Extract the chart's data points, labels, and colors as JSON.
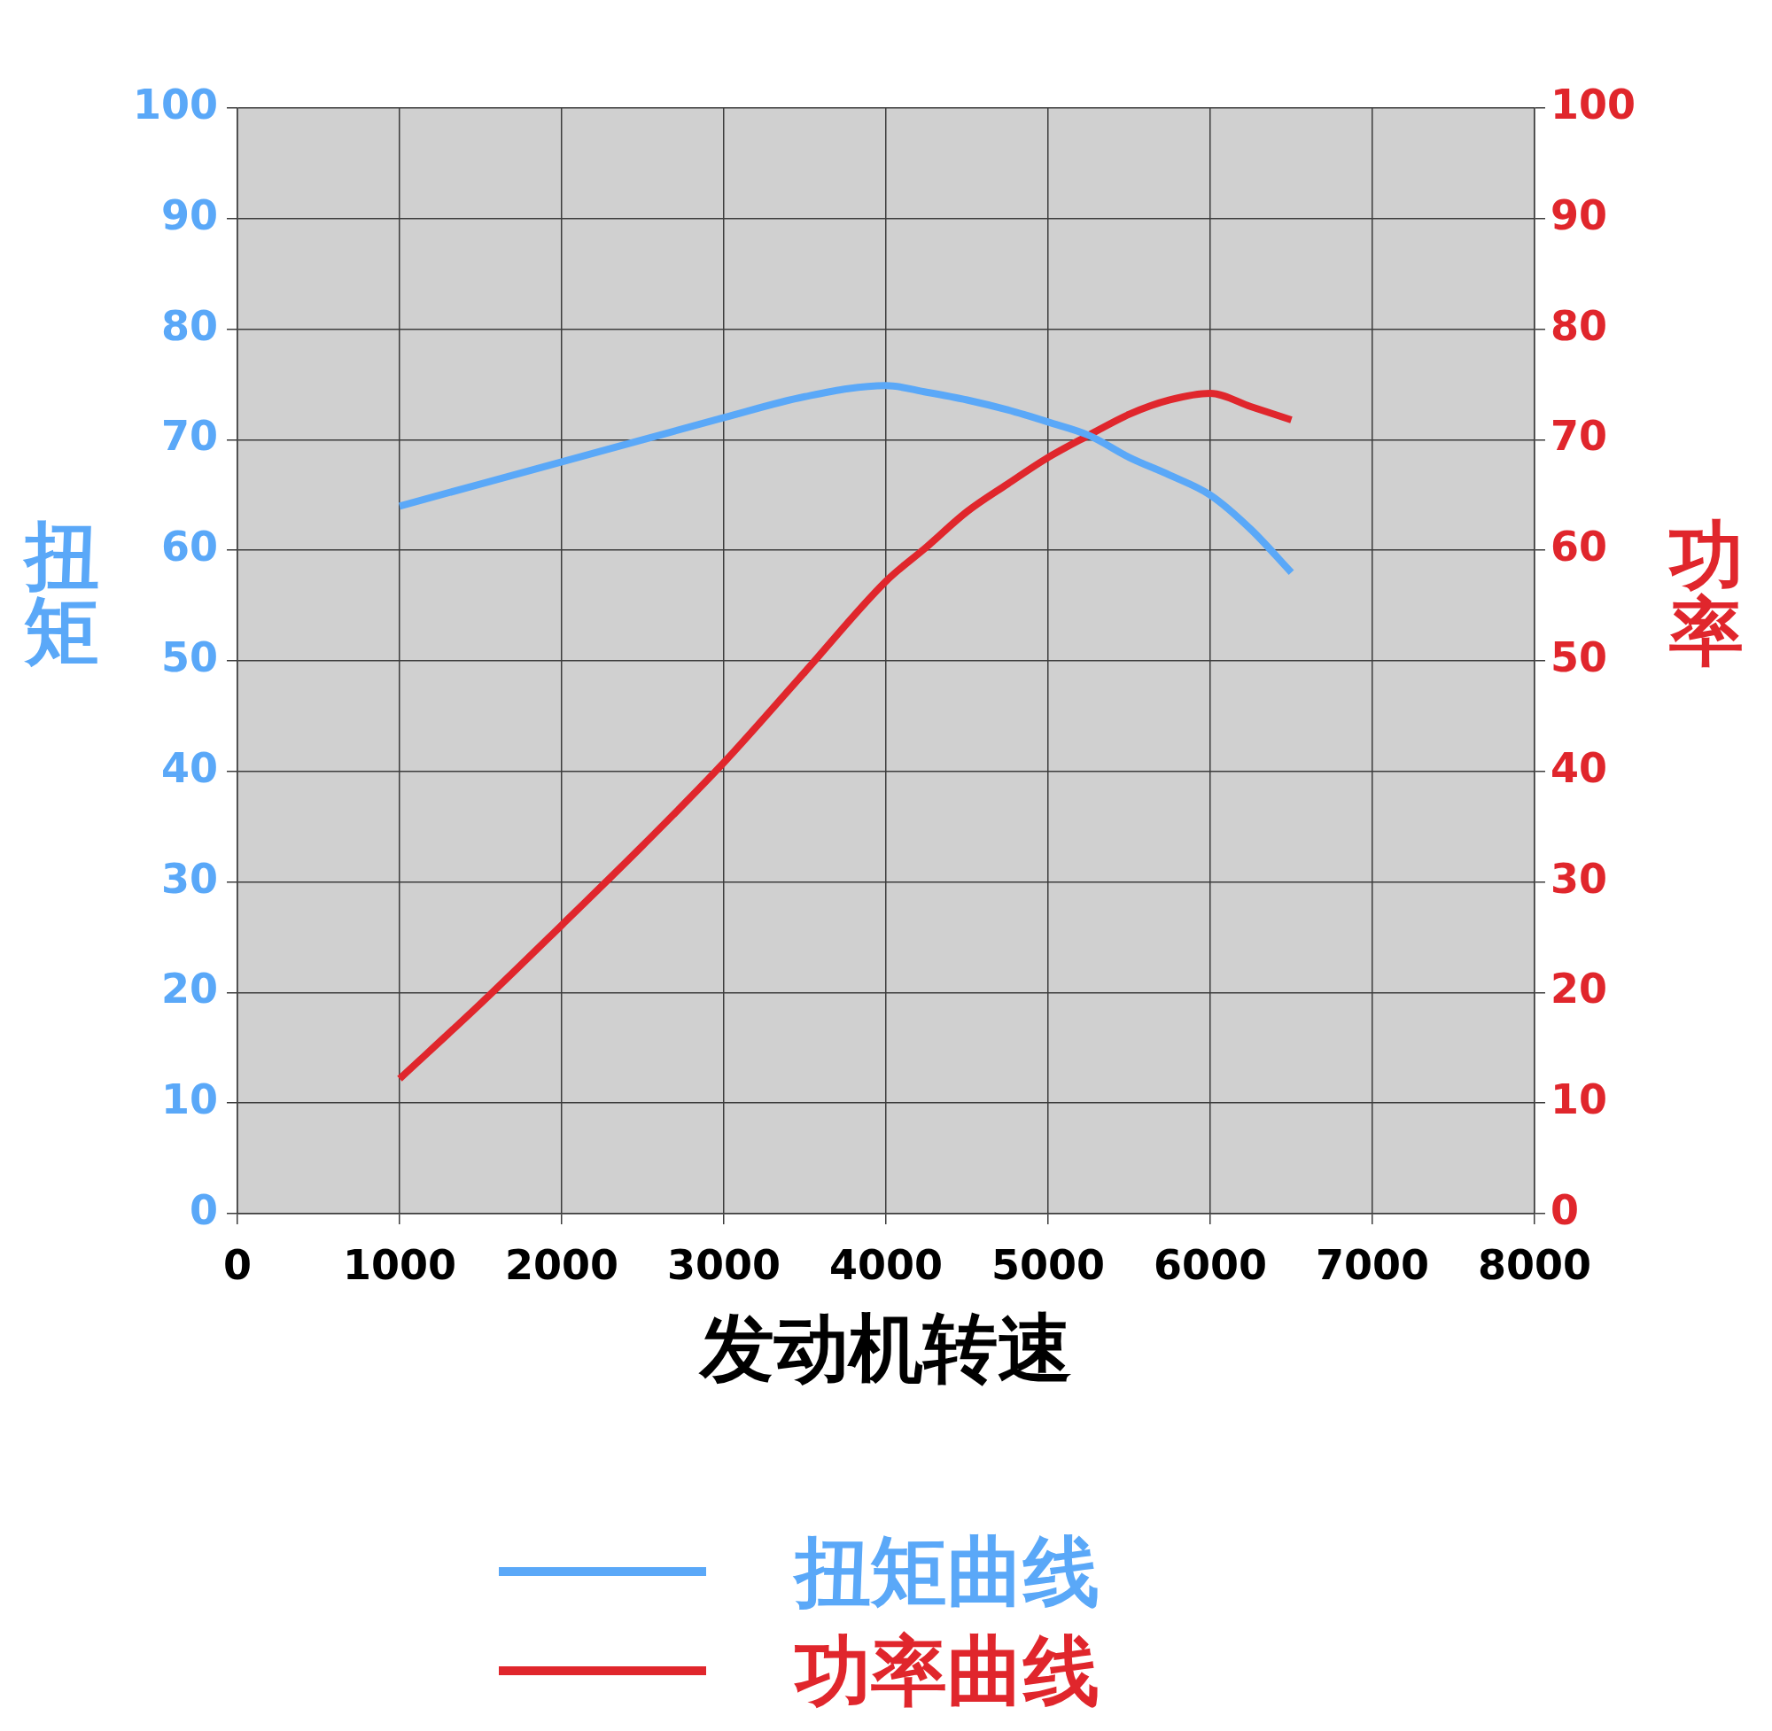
{
  "chart_data": {
    "type": "line",
    "xlabel": "发动机转速",
    "ylabel": "扭矩",
    "y2label": "功率",
    "x": [
      1000,
      1500,
      2000,
      2500,
      3000,
      3500,
      4000,
      4250,
      4500,
      4750,
      5000,
      5250,
      5500,
      5750,
      6000,
      6250,
      6500
    ],
    "series": [
      {
        "name": "扭矩曲线",
        "color": "#5aa8f8",
        "values": [
          64.0,
          66.0,
          68.0,
          70.0,
          72.0,
          73.9,
          74.9,
          74.3,
          73.6,
          72.7,
          71.6,
          70.4,
          68.4,
          66.8,
          65.0,
          61.9,
          58.0
        ]
      },
      {
        "name": "功率曲线",
        "color": "#e0262c",
        "axis": "y2",
        "values": [
          12.2,
          19.0,
          26.1,
          33.3,
          40.8,
          49.0,
          57.2,
          60.3,
          63.5,
          66.0,
          68.4,
          70.4,
          72.3,
          73.6,
          74.2,
          73.0,
          71.8
        ]
      }
    ],
    "xlim": [
      0,
      8000
    ],
    "xticks": [
      0,
      1000,
      2000,
      3000,
      4000,
      5000,
      6000,
      7000,
      8000
    ],
    "ylim": [
      0,
      100
    ],
    "yticks": [
      0,
      10,
      20,
      30,
      40,
      50,
      60,
      70,
      80,
      90,
      100
    ],
    "y2lim": [
      0,
      100
    ],
    "y2ticks": [
      0,
      10,
      20,
      30,
      40,
      50,
      60,
      70,
      80,
      90,
      100
    ],
    "grid": true,
    "legend": "bottom",
    "marker": "none",
    "line_style": "solid"
  }
}
